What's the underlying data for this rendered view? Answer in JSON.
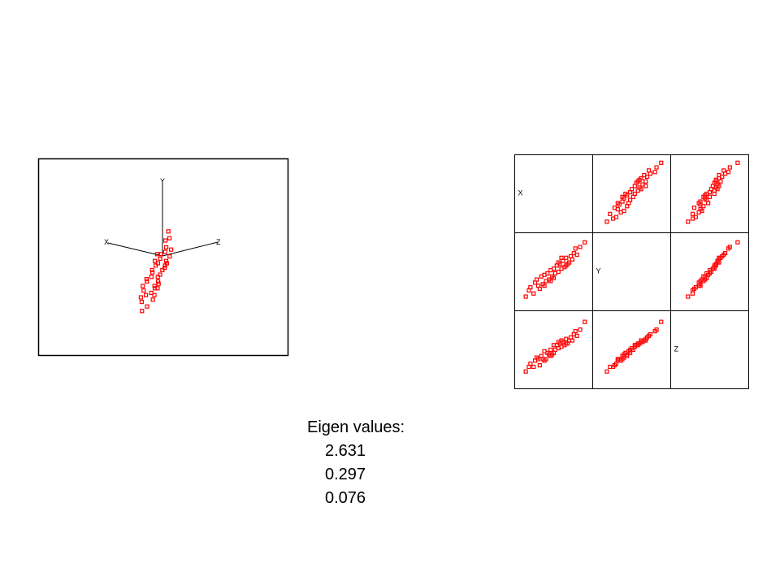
{
  "chart_data": {
    "type": "scatter_matrix",
    "variables": [
      "X",
      "Y",
      "Z"
    ],
    "color": "#ff0000",
    "lim": [
      -2.2,
      2.2
    ],
    "points": {
      "x": [
        -1.8,
        -1.5,
        -1.3,
        -1.2,
        -1.0,
        -0.9,
        -0.8,
        -0.7,
        -0.6,
        -0.5,
        -0.4,
        -0.3,
        -0.2,
        -0.1,
        0,
        0.1,
        0.2,
        0.3,
        0.4,
        0.5,
        0.6,
        0.7,
        0.8,
        0.9,
        1.0,
        1.1,
        1.2,
        1.3,
        1.5,
        1.7,
        -1.1,
        -0.2,
        0.3,
        0.8,
        -0.6,
        0.5,
        1.4,
        -1.6,
        0.0,
        2.0
      ],
      "y": [
        -1.6,
        -1.0,
        -1.4,
        -0.7,
        -0.9,
        -1.1,
        -0.3,
        -0.8,
        -0.2,
        -0.6,
        -0.1,
        -0.5,
        0.1,
        -0.3,
        0.2,
        -0.1,
        0.4,
        0.0,
        0.5,
        0.2,
        0.7,
        0.3,
        0.9,
        0.5,
        0.6,
        1.0,
        0.8,
        1.2,
        1.1,
        1.6,
        -0.5,
        -0.6,
        0.6,
        0.4,
        -0.9,
        0.9,
        1.5,
        -1.2,
        -0.4,
        1.9
      ],
      "z": [
        -1.4,
        -0.9,
        -1.1,
        -0.7,
        -0.6,
        -1.0,
        -0.4,
        -0.6,
        -0.1,
        -0.6,
        -0.2,
        -0.3,
        0.0,
        -0.3,
        0.3,
        0.0,
        0.3,
        0.1,
        0.4,
        0.2,
        0.5,
        0.3,
        0.7,
        0.4,
        0.6,
        0.8,
        0.6,
        1.0,
        0.9,
        1.3,
        -0.5,
        -0.4,
        0.5,
        0.4,
        -0.7,
        0.6,
        1.2,
        -1.1,
        -0.2,
        1.8
      ]
    }
  },
  "eigen_values": {
    "title": "Eigen values:",
    "values": [
      2.631,
      0.297,
      0.076
    ]
  }
}
